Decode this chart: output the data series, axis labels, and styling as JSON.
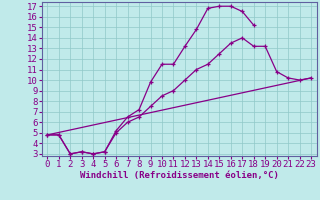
{
  "xlabel": "Windchill (Refroidissement éolien,°C)",
  "bg_color": "#c0eaea",
  "grid_color": "#90c8c8",
  "line_color": "#880088",
  "spine_color": "#6060a0",
  "xlim": [
    -0.5,
    23.5
  ],
  "ylim": [
    2.8,
    17.4
  ],
  "xticks": [
    0,
    1,
    2,
    3,
    4,
    5,
    6,
    7,
    8,
    9,
    10,
    11,
    12,
    13,
    14,
    15,
    16,
    17,
    18,
    19,
    20,
    21,
    22,
    23
  ],
  "yticks": [
    3,
    4,
    5,
    6,
    7,
    8,
    9,
    10,
    11,
    12,
    13,
    14,
    15,
    16,
    17
  ],
  "line1_x": [
    0,
    1,
    2,
    3,
    4,
    5,
    6,
    7,
    8,
    9,
    10,
    11,
    12,
    13,
    14,
    15,
    16,
    17,
    18
  ],
  "line1_y": [
    4.8,
    4.8,
    3.0,
    3.2,
    3.0,
    3.2,
    5.2,
    6.5,
    7.2,
    9.8,
    11.5,
    11.5,
    13.2,
    14.8,
    16.8,
    17.0,
    17.0,
    16.5,
    15.2
  ],
  "line2_x": [
    0,
    1,
    2,
    3,
    4,
    5,
    6,
    7,
    8,
    9,
    10,
    11,
    12,
    13,
    14,
    15,
    16,
    17,
    18,
    19,
    20,
    21,
    22,
    23
  ],
  "line2_y": [
    4.8,
    4.8,
    3.0,
    3.2,
    3.0,
    3.2,
    5.0,
    6.0,
    6.5,
    7.5,
    8.5,
    9.0,
    10.0,
    11.0,
    11.5,
    12.5,
    13.5,
    14.0,
    13.2,
    13.2,
    10.8,
    10.2,
    10.0,
    10.2
  ],
  "line3_x": [
    0,
    23
  ],
  "line3_y": [
    4.8,
    10.2
  ],
  "tick_fontsize": 6.5,
  "xlabel_fontsize": 6.5
}
